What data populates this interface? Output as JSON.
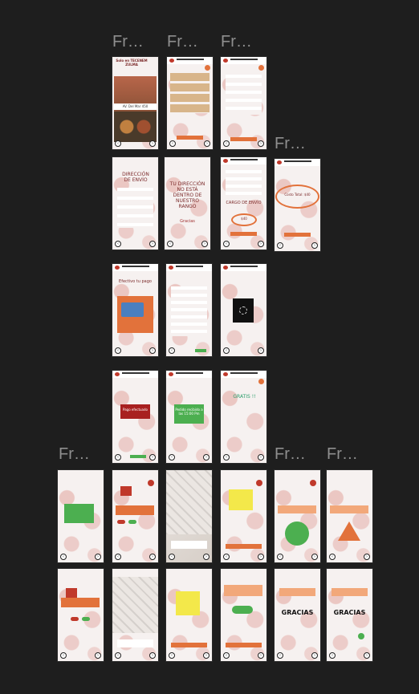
{
  "canvas": {
    "background": "#1e1e1e"
  },
  "frame_labels": {
    "r1a": "Fr…",
    "r1b": "Fr…",
    "r1c": "Fr…",
    "r1d": "Fr…",
    "r5a": "Fr…",
    "r5e": "Fr…",
    "r5f": "Fr…"
  },
  "screens": {
    "menu_title": "Solo en TECENEM ZULMA",
    "menu_price": "AV. Del Mar 450",
    "address_title": "DIRECCIÓN DE ENVÍO",
    "out_of_range": "TU DIRECCIÓN NO ESTÁ DENTRO DE NUESTRO RANGO",
    "out_of_range_thanks": "Gracias",
    "delivery_cost_title": "CARGO DE ENVÍO",
    "delivery_cost_value": "$40",
    "total_cost": "Costo Total: $40",
    "pay_cash": "Efectivo tu pago",
    "paid_badge": "Pago efectuado",
    "order_received": "Pedido recibido a las 15:00 Pm",
    "free_text": "GRATIS !!",
    "thanks": "GRACIAS",
    "thanks_alt": "GRACIAS"
  },
  "colors": {
    "accent_red": "#c0392b",
    "orange": "#e2723b",
    "green": "#4caf50",
    "frame_bg": "#f4efee"
  }
}
